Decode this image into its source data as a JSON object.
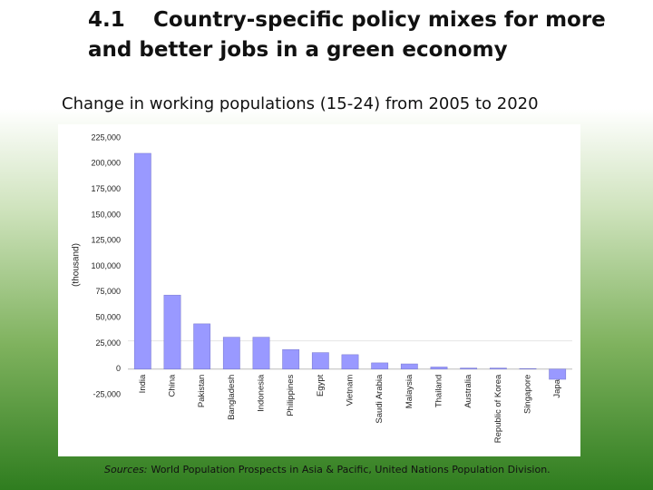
{
  "heading_number": "4.1",
  "heading": "Country-specific policy mixes for more and better jobs in a green economy",
  "chart_data": {
    "type": "bar",
    "title": "Change in working populations (15-24) from 2005 to 2020",
    "y_label": "(thousand)",
    "categories": [
      "India",
      "China",
      "Pakistan",
      "Bangladesh",
      "Indonesia",
      "Philippines",
      "Egypt",
      "Vietnam",
      "Saudi Arabia",
      "Malaysia",
      "Thailand",
      "Australia",
      "Republic of Korea",
      "Singapore",
      "Japan"
    ],
    "values": [
      210000,
      72000,
      44000,
      31000,
      31000,
      19000,
      16000,
      14000,
      6000,
      5000,
      2000,
      1000,
      1000,
      500,
      -10000
    ],
    "color": "#9999ff",
    "ylim": [
      -25000,
      225000
    ],
    "yticks": [
      {
        "value": -25000,
        "label": "-25,000"
      },
      0,
      {
        "value": 25000,
        "label": "25,000"
      },
      {
        "value": 50000,
        "label": "50,000"
      },
      {
        "value": 75000,
        "label": "75,000"
      },
      {
        "value": 100000,
        "label": "100,000"
      },
      {
        "value": 125000,
        "label": "125,000"
      },
      {
        "value": 150000,
        "label": "150,000"
      },
      {
        "value": 175000,
        "label": "175,000"
      },
      {
        "value": 200000,
        "label": "200,000"
      },
      {
        "value": 225000,
        "label": "225,000"
      }
    ],
    "grid": false,
    "source_label": "Sources:",
    "source": "World Population Prospects in Asia & Pacific, United Nations Population Division."
  }
}
